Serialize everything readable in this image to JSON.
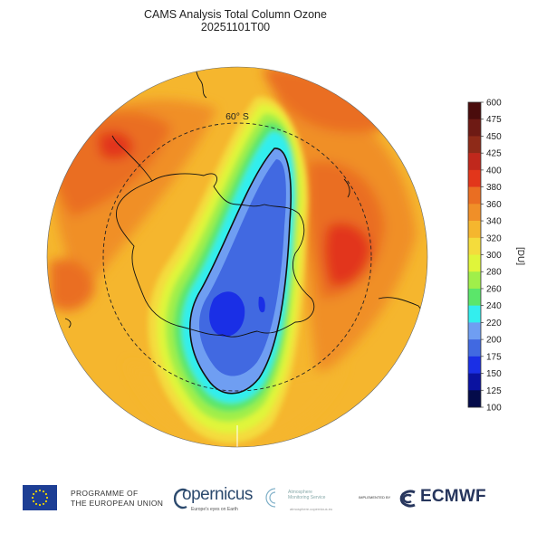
{
  "header": {
    "title": "CAMS Analysis  Total Column Ozone",
    "subtitle": "20251101T00"
  },
  "map": {
    "latitude_label": "60° S",
    "colors": {
      "c175": "#1a2fe6",
      "c200": "#4169e1",
      "c220": "#6f9ef2",
      "c240": "#33eeee",
      "c260": "#5be66a",
      "c280": "#a0ef4a",
      "c300": "#e0f53a",
      "c320": "#f4dc3c",
      "c340": "#f5b62e",
      "c360": "#f08f28",
      "c380": "#ea6e22",
      "c400": "#e2361b",
      "c425": "#8e2a18"
    }
  },
  "colorbar": {
    "unit": "[DU]",
    "ticks": [
      "600",
      "475",
      "450",
      "425",
      "400",
      "380",
      "360",
      "340",
      "320",
      "300",
      "280",
      "260",
      "240",
      "220",
      "200",
      "175",
      "150",
      "125",
      "100"
    ],
    "colors": [
      "#4a0c0c",
      "#6e1a14",
      "#8e2a18",
      "#c0281c",
      "#e2361b",
      "#ea6e22",
      "#f08f28",
      "#f5b62e",
      "#f4dc3c",
      "#e0f53a",
      "#a0ef4a",
      "#5be66a",
      "#33eeee",
      "#6f9ef2",
      "#4169e1",
      "#1a2fe6",
      "#0a12a0",
      "#040b4a"
    ]
  },
  "logos": {
    "eu_line1": "PROGRAMME OF",
    "eu_line2": "THE EUROPEAN UNION",
    "copernicus": "opernicus",
    "copernicus_tagline": "Europe's eyes on Earth",
    "cams_line1": "Atmosphere",
    "cams_line2": "Monitoring Service",
    "cams_sub": "atmosphere.copernicus.eu",
    "implemented_by": "IMPLEMENTED BY",
    "ecmwf": "ECMWF"
  }
}
